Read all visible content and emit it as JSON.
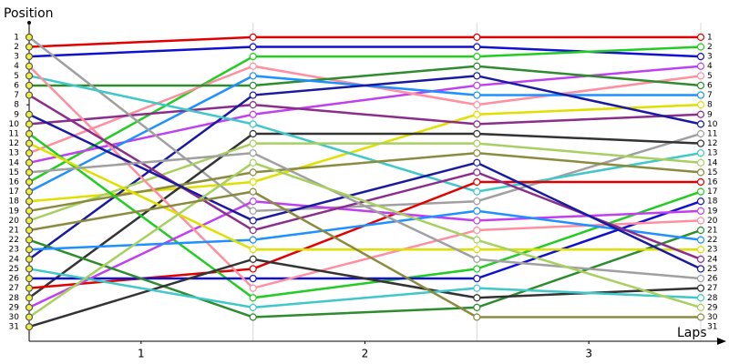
{
  "chart_data": {
    "type": "line",
    "y_label": "Position",
    "x_label": "Laps",
    "x": [
      0,
      1,
      2,
      3
    ],
    "xlim": [
      0,
      3
    ],
    "xticks": [
      {
        "value": 0.5,
        "label": "1"
      },
      {
        "value": 1.5,
        "label": "2"
      },
      {
        "value": 2.5,
        "label": "3"
      }
    ],
    "ylim": [
      32.5,
      -0.5
    ],
    "yticks": [
      1,
      2,
      3,
      4,
      5,
      6,
      7,
      8,
      9,
      10,
      11,
      12,
      13,
      14,
      15,
      16,
      17,
      18,
      19,
      20,
      21,
      22,
      23,
      24,
      25,
      26,
      27,
      28,
      29,
      30,
      31
    ],
    "series": [
      {
        "color": "#e00000",
        "values": [
          2,
          1,
          1,
          1
        ]
      },
      {
        "color": "#1010d0",
        "values": [
          3,
          2,
          2,
          3
        ]
      },
      {
        "color": "#22cc22",
        "values": [
          16,
          3,
          3,
          2
        ]
      },
      {
        "color": "#c040f0",
        "values": [
          14,
          9,
          6,
          4
        ]
      },
      {
        "color": "#ff8fa0",
        "values": [
          13,
          4,
          8,
          5
        ]
      },
      {
        "color": "#2e8b2e",
        "values": [
          6,
          6,
          4,
          6
        ]
      },
      {
        "color": "#1e90ff",
        "values": [
          17,
          5,
          7,
          7
        ]
      },
      {
        "color": "#e0e000",
        "values": [
          18,
          16,
          9,
          8
        ]
      },
      {
        "color": "#8b2d8b",
        "values": [
          10,
          8,
          10,
          9
        ]
      },
      {
        "color": "#1a1aa0",
        "values": [
          24,
          7,
          5,
          10
        ]
      },
      {
        "color": "#a0a0a0",
        "values": [
          1,
          19,
          18,
          11
        ]
      },
      {
        "color": "#333333",
        "values": [
          28,
          11,
          11,
          12
        ]
      },
      {
        "color": "#40c8c8",
        "values": [
          5,
          10,
          17,
          13
        ]
      },
      {
        "color": "#a8d060",
        "values": [
          20,
          12,
          12,
          14
        ]
      },
      {
        "color": "#8b8b40",
        "values": [
          19,
          15,
          13,
          15
        ]
      },
      {
        "color": "#e00000",
        "values": [
          27,
          25,
          16,
          16
        ]
      },
      {
        "color": "#22cc22",
        "values": [
          11,
          28,
          25,
          17
        ]
      },
      {
        "color": "#1010d0",
        "values": [
          26,
          26,
          26,
          18
        ]
      },
      {
        "color": "#c040f0",
        "values": [
          29,
          18,
          20,
          19
        ]
      },
      {
        "color": "#ff8fa0",
        "values": [
          4,
          27,
          21,
          20
        ]
      },
      {
        "color": "#2e8b2e",
        "values": [
          22,
          30,
          29,
          21
        ]
      },
      {
        "color": "#1e90ff",
        "values": [
          23,
          22,
          19,
          22
        ]
      },
      {
        "color": "#e0e000",
        "values": [
          12,
          23,
          23,
          23
        ]
      },
      {
        "color": "#8b2d8b",
        "values": [
          7,
          21,
          15,
          24
        ]
      },
      {
        "color": "#1a1aa0",
        "values": [
          9,
          20,
          14,
          25
        ]
      },
      {
        "color": "#a0a0a0",
        "values": [
          15,
          13,
          24,
          26
        ]
      },
      {
        "color": "#333333",
        "values": [
          31,
          24,
          28,
          27
        ]
      },
      {
        "color": "#40c8c8",
        "values": [
          25,
          29,
          27,
          28
        ]
      },
      {
        "color": "#a8d060",
        "values": [
          30,
          14,
          22,
          29
        ]
      },
      {
        "color": "#8b8b40",
        "values": [
          21,
          17,
          30,
          30
        ]
      }
    ]
  }
}
